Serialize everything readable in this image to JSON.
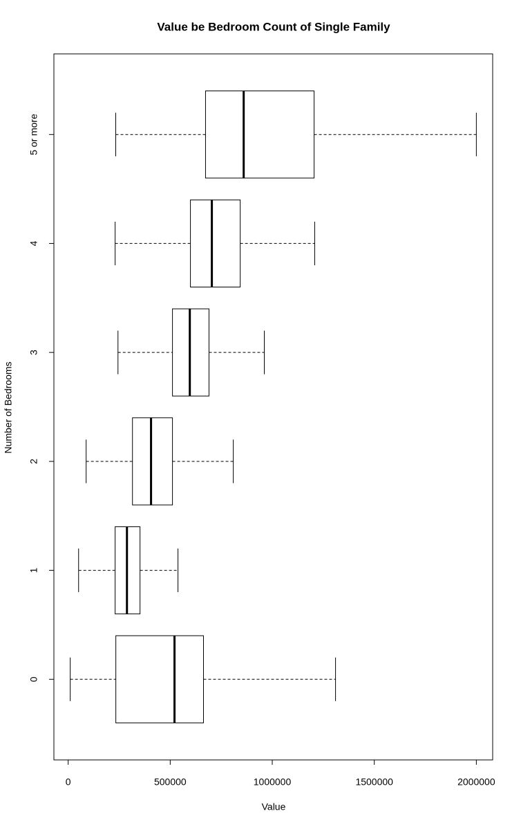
{
  "chart_data": {
    "type": "boxplot",
    "orientation": "horizontal",
    "title": "Value be Bedroom Count of Single Family",
    "x_label": "Value",
    "y_label": "Number of Bedrooms",
    "categories": [
      "0",
      "1",
      "2",
      "3",
      "4",
      "5 or more"
    ],
    "min": [
      10000,
      51000,
      88000,
      244000,
      230000,
      233000
    ],
    "q1": [
      233500,
      230000,
      315000,
      511000,
      599000,
      673000
    ],
    "median": [
      521000,
      288000,
      406000,
      596000,
      704000,
      860000
    ],
    "q3": [
      663000,
      352000,
      511000,
      690000,
      843000,
      1205000
    ],
    "max": [
      1310000,
      538000,
      809000,
      961000,
      1208000,
      2000000
    ],
    "color": "#000000",
    "xlim": [
      -70000,
      2080000
    ],
    "xticks": [
      0,
      500000,
      1000000,
      1500000,
      2000000
    ],
    "grid": false
  }
}
